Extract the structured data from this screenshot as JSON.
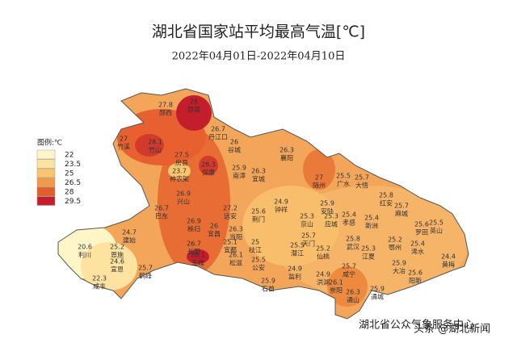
{
  "header": {
    "title": "湖北省国家站平均最高气温[℃]",
    "subtitle": "2022年04月01日-2022年04月10日"
  },
  "legend": {
    "title": "图例:℃",
    "items": [
      {
        "value": 22,
        "color": "#fff6c8"
      },
      {
        "value": 23.5,
        "color": "#fde2a0"
      },
      {
        "value": 25,
        "color": "#f9c56e"
      },
      {
        "value": 26.5,
        "color": "#f29a48"
      },
      {
        "value": 28,
        "color": "#e55e2a"
      },
      {
        "value": 29.5,
        "color": "#c41e2c"
      }
    ]
  },
  "stations": [
    {
      "name": "郧西",
      "value": 27.8
    },
    {
      "name": "郧县",
      "value": 28
    },
    {
      "name": "竹溪",
      "value": 27
    },
    {
      "name": "竹山",
      "value": 28.1
    },
    {
      "name": "丹江口",
      "value": 26.7
    },
    {
      "name": "谷城",
      "value": 26
    },
    {
      "name": "房县",
      "value": 27.5
    },
    {
      "name": "保康",
      "value": 28.3
    },
    {
      "name": "神农架",
      "value": 23.7
    },
    {
      "name": "南漳",
      "value": 25.9
    },
    {
      "name": "襄阳",
      "value": 26.3
    },
    {
      "name": "宜城",
      "value": 26.3
    },
    {
      "name": "随州",
      "value": 27
    },
    {
      "name": "广水",
      "value": 25.5
    },
    {
      "name": "大悟",
      "value": 25.7
    },
    {
      "name": "兴山",
      "value": 26.9
    },
    {
      "name": "钟祥",
      "value": 24.9
    },
    {
      "name": "安陆",
      "value": 25.9
    },
    {
      "name": "红安",
      "value": 25.8
    },
    {
      "name": "麻城",
      "value": 25.7
    },
    {
      "name": "巴东",
      "value": 26.7
    },
    {
      "name": "远安",
      "value": 27.2
    },
    {
      "name": "荆门",
      "value": 25.6
    },
    {
      "name": "京山",
      "value": 25.3
    },
    {
      "name": "应城",
      "value": 25.3
    },
    {
      "name": "孝感",
      "value": 25.4
    },
    {
      "name": "新洲",
      "value": 25.4
    },
    {
      "name": "罗田",
      "value": 25.6
    },
    {
      "name": "秭归",
      "value": 26.9
    },
    {
      "name": "宜昌",
      "value": 26
    },
    {
      "name": "当阳",
      "value": 26.3
    },
    {
      "name": "天门",
      "value": 25.7
    },
    {
      "name": "武汉",
      "value": 25.8
    },
    {
      "name": "英山",
      "value": 25.5
    },
    {
      "name": "利川",
      "value": 20.6
    },
    {
      "name": "建始",
      "value": 24.7
    },
    {
      "name": "恩施",
      "value": 25.2
    },
    {
      "name": "长阳",
      "value": 26.7
    },
    {
      "name": "五峰",
      "value": 28.1
    },
    {
      "name": "宜都",
      "value": 25.1
    },
    {
      "name": "枝江",
      "value": 25
    },
    {
      "name": "潜江",
      "value": 25.5
    },
    {
      "name": "仙桃",
      "value": 25.2
    },
    {
      "name": "江夏",
      "value": 25.3
    },
    {
      "name": "鄂州",
      "value": 25.2
    },
    {
      "name": "浠水",
      "value": 25.4
    },
    {
      "name": "宣恩",
      "value": 24.6
    },
    {
      "name": "鹤峰",
      "value": 25.7
    },
    {
      "name": "松滋",
      "value": 26.1
    },
    {
      "name": "公安",
      "value": 25.5
    },
    {
      "name": "监利",
      "value": 24.9
    },
    {
      "name": "洪湖",
      "value": 24.9
    },
    {
      "name": "咸宁",
      "value": 25.7
    },
    {
      "name": "大冶",
      "value": 25.9
    },
    {
      "name": "阳新",
      "value": 25.6
    },
    {
      "name": "黄梅",
      "value": 24.4
    },
    {
      "name": "咸丰",
      "value": 22.3
    },
    {
      "name": "石首",
      "value": 25.9
    },
    {
      "name": "崇阳",
      "value": 26.1
    },
    {
      "name": "通山",
      "value": 26.3
    },
    {
      "name": "通城",
      "value": 25.9
    }
  ],
  "footer": {
    "source": "湖北省公众气象服务中心",
    "watermark": "头条 @湖北新闻"
  }
}
